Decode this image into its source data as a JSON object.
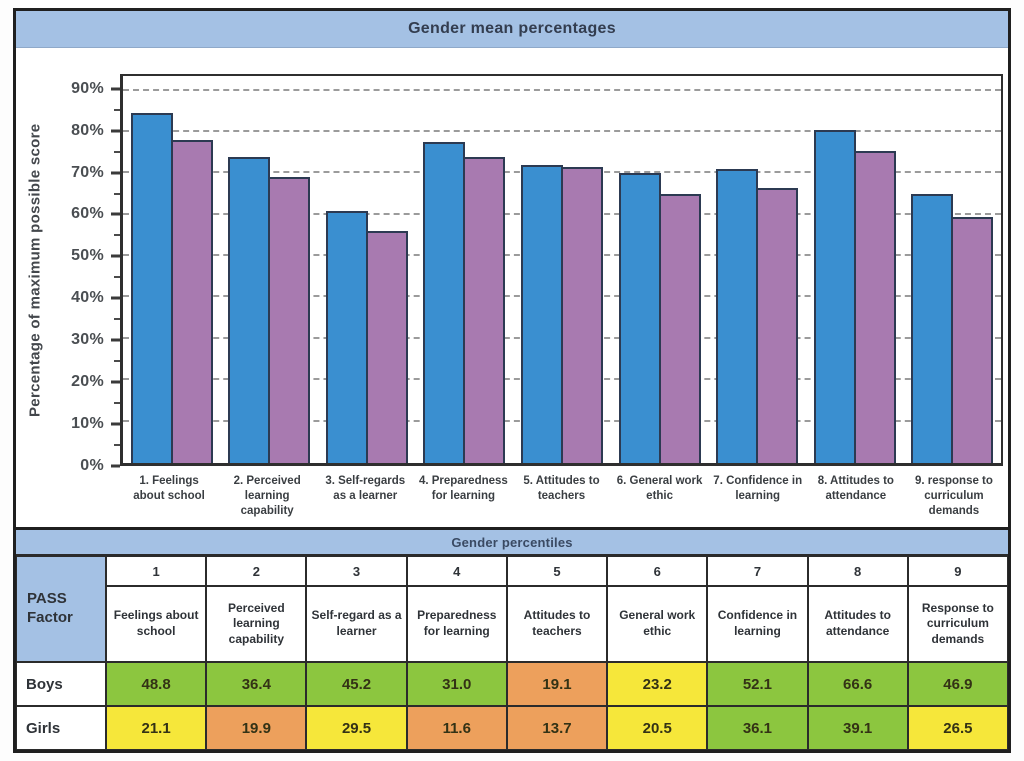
{
  "chart_title": "Gender mean percentages",
  "chart_data": {
    "type": "bar",
    "title": "Gender mean percentages",
    "xlabel": "",
    "ylabel": "Percentage of maximum possible score",
    "y_ticks": [
      "0%",
      "10%",
      "20%",
      "30%",
      "40%",
      "50%",
      "60%",
      "70%",
      "80%",
      "90%"
    ],
    "ylim": [
      0,
      93.5
    ],
    "grid": "horizontal dashed every 10%",
    "legend_position": "none",
    "categories": [
      "1. Feelings about school",
      "2. Perceived learning capability",
      "3. Self-regards as a learner",
      "4. Preparedness for learning",
      "5. Attitudes to teachers",
      "6. General work ethic",
      "7. Confidence in learning",
      "8. Attitudes to attendance",
      "9. response to curriculum demands"
    ],
    "series": [
      {
        "name": "blue",
        "color": "#3a8fd0",
        "values": [
          84.5,
          74,
          61,
          77.5,
          72,
          70,
          71,
          80.5,
          65
        ]
      },
      {
        "name": "purple",
        "color": "#a87ab0",
        "values": [
          78,
          69,
          56,
          74,
          71.5,
          65,
          66.5,
          75.5,
          59.5
        ]
      }
    ]
  },
  "table": {
    "title": "Gender percentiles",
    "corner_label": "PASS Factor",
    "column_numbers": [
      "1",
      "2",
      "3",
      "4",
      "5",
      "6",
      "7",
      "8",
      "9"
    ],
    "factors": [
      "Feelings about school",
      "Perceived learning capability",
      "Self-regard as a learner",
      "Preparedness for learning",
      "Attitudes to teachers",
      "General work ethic",
      "Confidence in learning",
      "Attitudes to attendance",
      "Response to curriculum demands"
    ],
    "rows": [
      {
        "label": "Boys",
        "values": [
          "48.8",
          "36.4",
          "45.2",
          "31.0",
          "19.1",
          "23.2",
          "52.1",
          "66.6",
          "46.9"
        ],
        "colors": [
          "green",
          "green",
          "green",
          "green",
          "orange",
          "yellow",
          "green",
          "green",
          "green"
        ]
      },
      {
        "label": "Girls",
        "values": [
          "21.1",
          "19.9",
          "29.5",
          "11.6",
          "13.7",
          "20.5",
          "36.1",
          "39.1",
          "26.5"
        ],
        "colors": [
          "yellow",
          "orange",
          "yellow",
          "orange",
          "orange",
          "yellow",
          "green",
          "green",
          "yellow"
        ]
      }
    ],
    "palette": {
      "green": "#8cc63f",
      "yellow": "#f6e73a",
      "orange": "#eda05c",
      "header_blue": "#a4c1e4"
    }
  }
}
